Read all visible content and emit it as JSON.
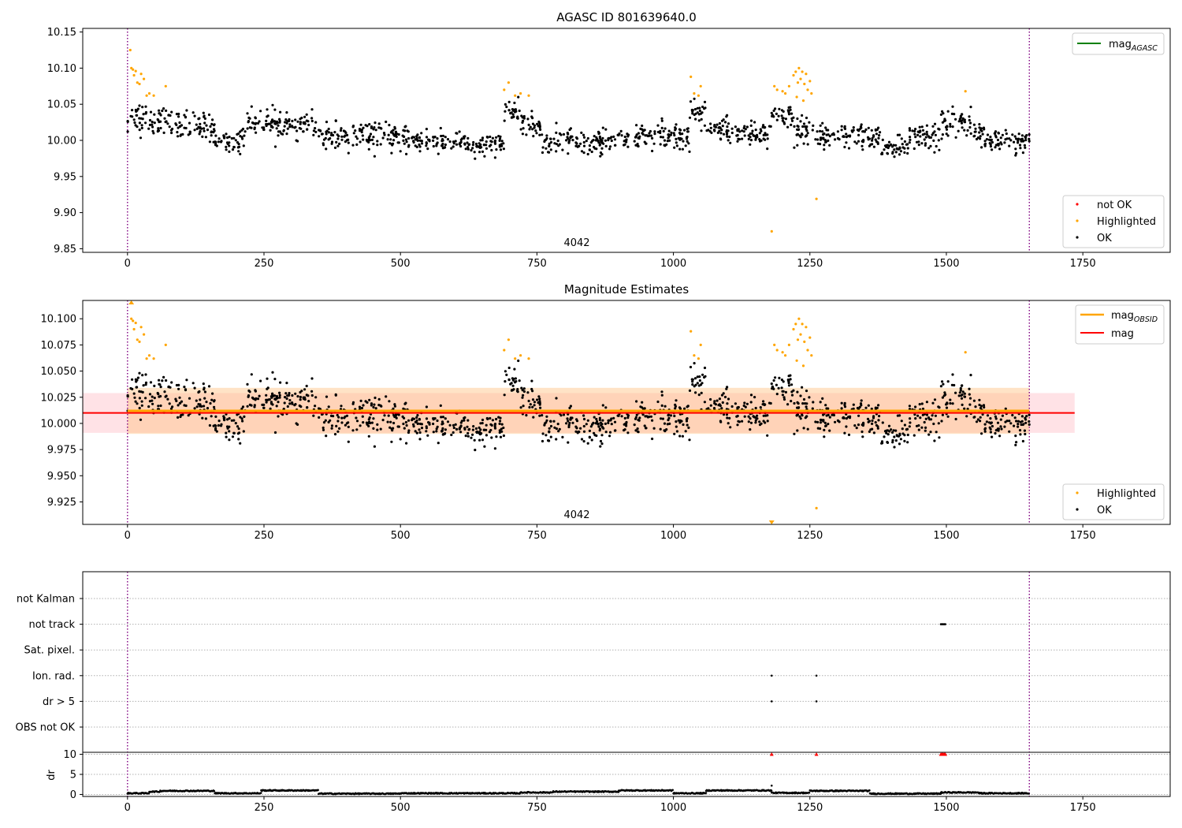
{
  "chart_data": [
    {
      "type": "scatter",
      "title": "AGASC ID 801639640.0",
      "ylim": [
        9.845,
        10.155
      ],
      "xlim": [
        -82,
        1910
      ],
      "x_ticks": [
        0,
        250,
        500,
        750,
        1000,
        1250,
        1500,
        1750
      ],
      "y_ticks": [
        9.85,
        9.9,
        9.95,
        10.0,
        10.05,
        10.1,
        10.15
      ],
      "y_tick_labels": [
        "9.85",
        "9.90",
        "9.95",
        "10.00",
        "10.05",
        "10.10",
        "10.15"
      ],
      "obsid_label": "4042",
      "vlines": [
        0,
        1652
      ],
      "line_legend": [
        {
          "name": "mag",
          "sub": "AGASC",
          "color": "#008000"
        }
      ],
      "point_legend": [
        {
          "name": "not OK",
          "color": "#ff0000"
        },
        {
          "name": "Highlighted",
          "color": "#ffa500"
        },
        {
          "name": "OK",
          "color": "#000000"
        }
      ],
      "segments": [
        [
          0,
          70,
          10.03,
          0.02
        ],
        [
          70,
          160,
          10.02,
          0.018
        ],
        [
          160,
          215,
          10.0,
          0.015
        ],
        [
          215,
          270,
          10.025,
          0.015
        ],
        [
          270,
          350,
          10.02,
          0.015
        ],
        [
          350,
          520,
          10.005,
          0.017
        ],
        [
          520,
          560,
          10.0,
          0.015
        ],
        [
          560,
          690,
          9.995,
          0.013
        ],
        [
          690,
          720,
          10.04,
          0.015
        ],
        [
          720,
          760,
          10.02,
          0.015
        ],
        [
          760,
          900,
          9.998,
          0.015
        ],
        [
          900,
          1030,
          10.005,
          0.018
        ],
        [
          1030,
          1060,
          10.04,
          0.017
        ],
        [
          1060,
          1120,
          10.015,
          0.015
        ],
        [
          1120,
          1180,
          10.01,
          0.015
        ],
        [
          1180,
          1220,
          10.03,
          0.016
        ],
        [
          1220,
          1260,
          10.01,
          0.02
        ],
        [
          1260,
          1380,
          10.005,
          0.016
        ],
        [
          1380,
          1430,
          9.99,
          0.014
        ],
        [
          1430,
          1490,
          10.005,
          0.015
        ],
        [
          1490,
          1545,
          10.025,
          0.018
        ],
        [
          1545,
          1570,
          10.01,
          0.015
        ],
        [
          1570,
          1652,
          9.998,
          0.013
        ]
      ],
      "highlighted_points": [
        [
          5,
          10.125
        ],
        [
          7,
          10.1
        ],
        [
          10,
          10.098
        ],
        [
          12,
          10.09
        ],
        [
          15,
          10.096
        ],
        [
          18,
          10.08
        ],
        [
          22,
          10.078
        ],
        [
          25,
          10.092
        ],
        [
          30,
          10.085
        ],
        [
          35,
          10.062
        ],
        [
          40,
          10.065
        ],
        [
          48,
          10.062
        ],
        [
          70,
          10.075
        ],
        [
          690,
          10.07
        ],
        [
          698,
          10.08
        ],
        [
          710,
          10.062
        ],
        [
          720,
          10.065
        ],
        [
          735,
          10.062
        ],
        [
          1032,
          10.088
        ],
        [
          1038,
          10.065
        ],
        [
          1046,
          10.062
        ],
        [
          1050,
          10.075
        ],
        [
          1185,
          10.075
        ],
        [
          1190,
          10.07
        ],
        [
          1200,
          10.068
        ],
        [
          1205,
          10.065
        ],
        [
          1212,
          10.075
        ],
        [
          1220,
          10.09
        ],
        [
          1224,
          10.095
        ],
        [
          1228,
          10.08
        ],
        [
          1230,
          10.1
        ],
        [
          1233,
          10.085
        ],
        [
          1236,
          10.095
        ],
        [
          1240,
          10.078
        ],
        [
          1243,
          10.092
        ],
        [
          1246,
          10.07
        ],
        [
          1250,
          10.082
        ],
        [
          1253,
          10.065
        ],
        [
          1226,
          10.06
        ],
        [
          1238,
          10.055
        ],
        [
          1535,
          10.068
        ],
        [
          1180,
          9.874
        ],
        [
          1262,
          9.919
        ]
      ]
    },
    {
      "type": "scatter",
      "title": "Magnitude Estimates",
      "ylim": [
        9.9035,
        10.1175
      ],
      "xlim": [
        -82,
        1910
      ],
      "x_ticks": [
        0,
        250,
        500,
        750,
        1000,
        1250,
        1500,
        1750
      ],
      "y_ticks": [
        9.925,
        9.95,
        9.975,
        10.0,
        10.025,
        10.05,
        10.075,
        10.1
      ],
      "y_tick_labels": [
        "9.925",
        "9.950",
        "9.975",
        "10.000",
        "10.025",
        "10.050",
        "10.075",
        "10.100"
      ],
      "obsid_label": "4042",
      "vlines": [
        0,
        1652
      ],
      "mag_line": {
        "value": 10.01,
        "x_range": [
          -82,
          1735
        ],
        "band": [
          9.991,
          10.029
        ]
      },
      "obsid_line": {
        "value": 10.012,
        "x_range": [
          0,
          1652
        ],
        "band": [
          9.99,
          10.034
        ]
      },
      "line_legend": [
        {
          "name": "mag",
          "sub": "OBSID",
          "color": "#ffa500"
        },
        {
          "name": "mag",
          "sub": "",
          "color": "#ff0000"
        }
      ],
      "point_legend": [
        {
          "name": "Highlighted",
          "color": "#ffa500"
        },
        {
          "name": "OK",
          "color": "#000000"
        }
      ],
      "out_of_range_markers": [
        [
          7,
          "top"
        ],
        [
          1180,
          "bottom"
        ]
      ]
    },
    {
      "type": "scatter",
      "title": "",
      "flag_rows": [
        "not Kalman",
        "not track",
        "Sat. pixel.",
        "Ion. rad.",
        "dr > 5",
        "OBS not OK"
      ],
      "flag_points": [
        {
          "row": "not track",
          "x": [
            1490,
            1492,
            1494,
            1496,
            1498
          ]
        },
        {
          "row": "Ion. rad.",
          "x": [
            1180,
            1262
          ]
        },
        {
          "row": "dr > 5",
          "x": [
            1180,
            1262
          ]
        }
      ],
      "dr_ylabel": "dr",
      "dr_ylim": [
        -0.5,
        10.5
      ],
      "dr_ticks": [
        0,
        5,
        10
      ],
      "x_ticks": [
        0,
        250,
        500,
        750,
        1000,
        1250,
        1500,
        1750
      ],
      "vlines": [
        0,
        1652
      ],
      "dr_segments": [
        [
          0,
          40,
          0.3
        ],
        [
          40,
          60,
          0.7
        ],
        [
          60,
          160,
          0.9
        ],
        [
          160,
          245,
          0.3
        ],
        [
          245,
          350,
          1.0
        ],
        [
          350,
          500,
          0.2
        ],
        [
          500,
          720,
          0.3
        ],
        [
          720,
          780,
          0.5
        ],
        [
          780,
          900,
          0.7
        ],
        [
          900,
          1000,
          1.0
        ],
        [
          1000,
          1060,
          0.3
        ],
        [
          1060,
          1180,
          1.0
        ],
        [
          1180,
          1250,
          0.4
        ],
        [
          1250,
          1360,
          0.9
        ],
        [
          1360,
          1490,
          0.2
        ],
        [
          1490,
          1560,
          0.5
        ],
        [
          1560,
          1652,
          0.3
        ]
      ],
      "dr_extra_points": [
        [
          1180,
          2.2
        ]
      ],
      "dr_flag_points": [
        1180,
        1262,
        1490,
        1492,
        1494,
        1496,
        1498
      ]
    }
  ]
}
